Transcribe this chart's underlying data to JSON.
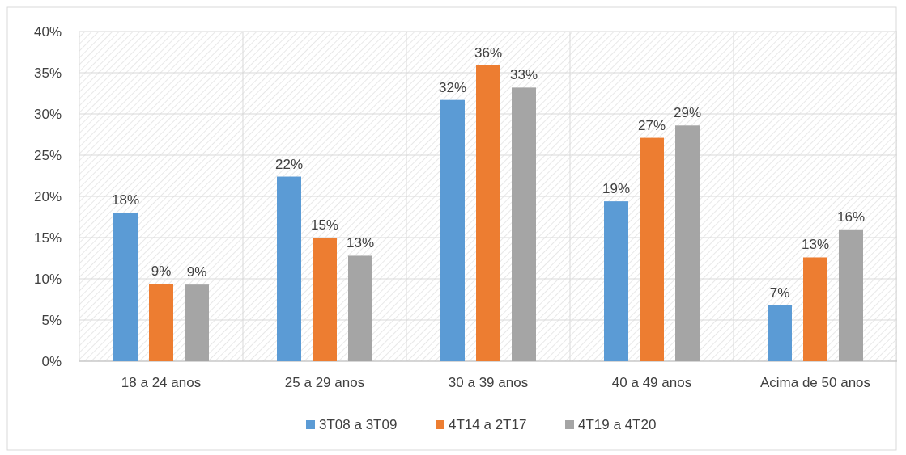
{
  "chart_data": {
    "type": "bar",
    "categories": [
      "18 a 24 anos",
      "25 a 29 anos",
      "30 a 39 anos",
      "40 a 49 anos",
      "Acima de 50 anos"
    ],
    "series": [
      {
        "name": "3T08 a 3T09",
        "color": "#5b9bd5",
        "values": [
          18.0,
          22.4,
          31.7,
          19.4,
          6.8
        ],
        "value_labels": [
          "18%",
          "22%",
          "32%",
          "19%",
          "7%"
        ]
      },
      {
        "name": "4T14 a 2T17",
        "color": "#ed7d31",
        "values": [
          9.4,
          15.0,
          35.9,
          27.1,
          12.6
        ],
        "value_labels": [
          "9%",
          "15%",
          "36%",
          "27%",
          "13%"
        ]
      },
      {
        "name": "4T19 a 4T20",
        "color": "#a5a5a5",
        "values": [
          9.3,
          12.8,
          33.2,
          28.6,
          16.0
        ],
        "value_labels": [
          "9%",
          "13%",
          "33%",
          "29%",
          "16%"
        ]
      }
    ],
    "ylim": [
      0,
      40
    ],
    "yticks": [
      {
        "value": 0,
        "label": "0%"
      },
      {
        "value": 5,
        "label": "5%"
      },
      {
        "value": 10,
        "label": "10%"
      },
      {
        "value": 15,
        "label": "15%"
      },
      {
        "value": 20,
        "label": "20%"
      },
      {
        "value": 25,
        "label": "25%"
      },
      {
        "value": 30,
        "label": "30%"
      },
      {
        "value": 35,
        "label": "35%"
      },
      {
        "value": 40,
        "label": "40%"
      }
    ],
    "grid": true,
    "legend": "bottom"
  }
}
